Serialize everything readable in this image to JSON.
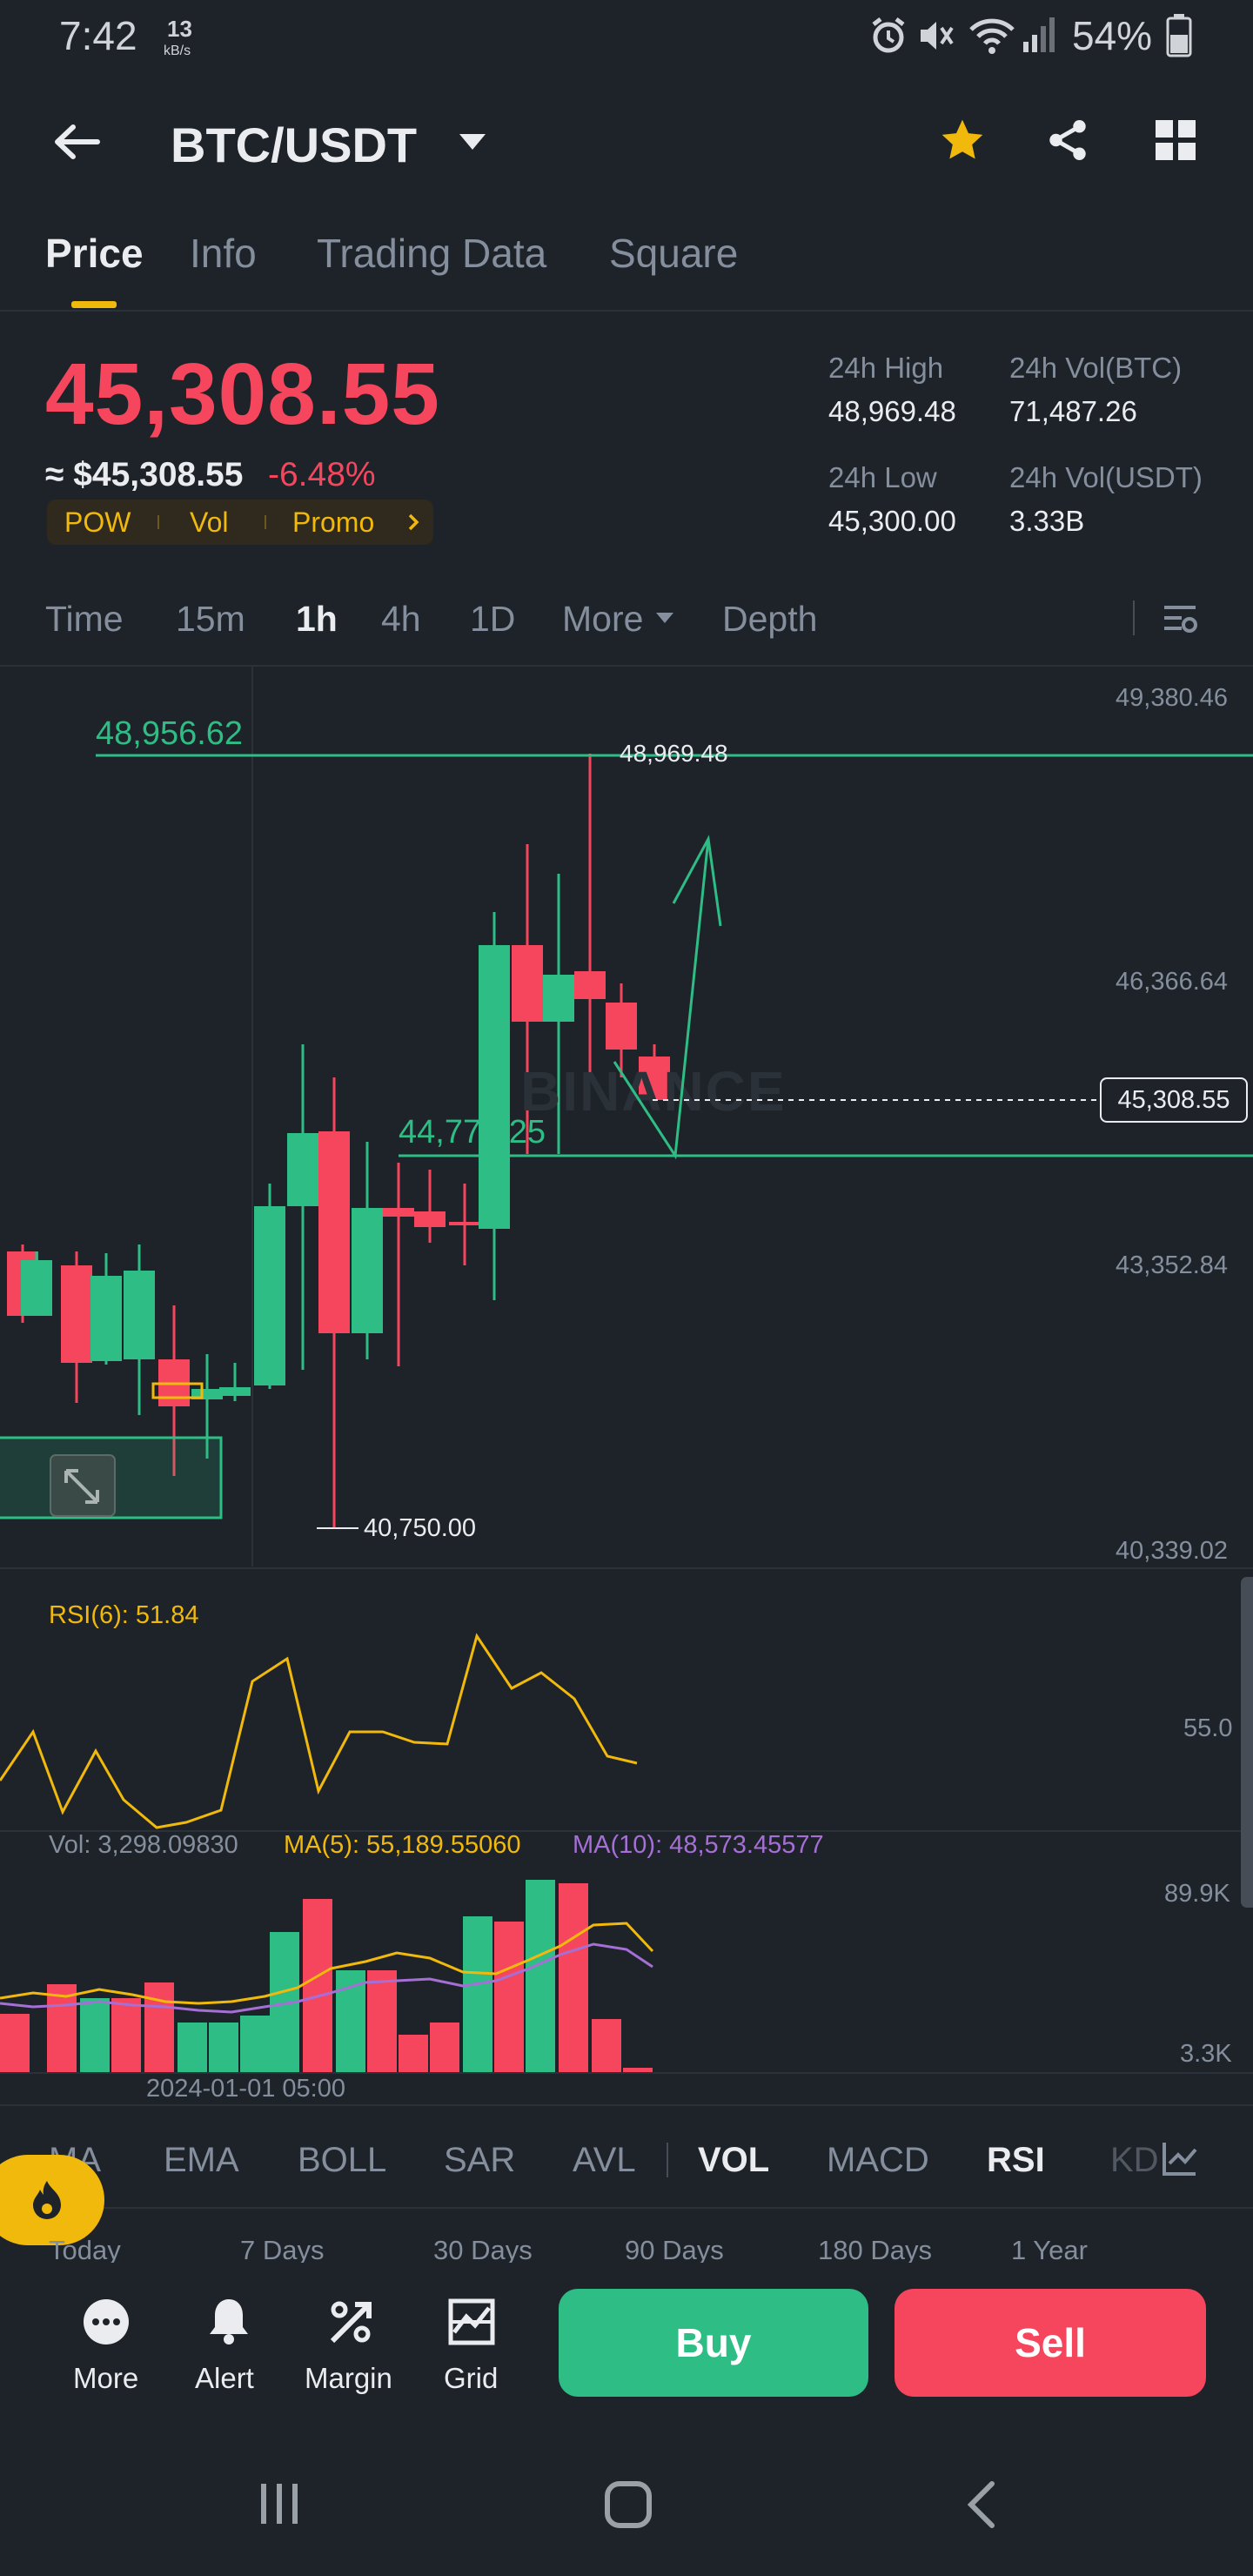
{
  "status_bar": {
    "time": "7:42",
    "net_speed": "13",
    "net_unit": "kB/s",
    "battery": "54%"
  },
  "header": {
    "pair": "BTC/USDT"
  },
  "tabs": [
    {
      "label": "Price",
      "active": true
    },
    {
      "label": "Info"
    },
    {
      "label": "Trading Data"
    },
    {
      "label": "Square"
    }
  ],
  "ticker": {
    "last_price": "45,308.55",
    "approx": "≈ $45,308.55",
    "change": "-6.48%",
    "badges": [
      "POW",
      "Vol",
      "Promo"
    ],
    "high_label": "24h High",
    "high": "48,969.48",
    "low_label": "24h Low",
    "low": "45,300.00",
    "vol_btc_label": "24h Vol(BTC)",
    "vol_btc": "71,487.26",
    "vol_usdt_label": "24h Vol(USDT)",
    "vol_usdt": "3.33B"
  },
  "timeframes": {
    "time": "Time",
    "m15": "15m",
    "h1": "1h",
    "h4": "4h",
    "d1": "1D",
    "more": "More",
    "depth": "Depth"
  },
  "chart": {
    "y_ticks": [
      "49,380.46",
      "46,366.64",
      "43,352.84",
      "40,339.02"
    ],
    "line_high": "48,956.62",
    "line_low": "44,778.25",
    "high_marker": "48,969.48",
    "low_marker": "40,750.00",
    "current_price": "45,308.55",
    "watermark": "BINANCE"
  },
  "rsi": {
    "label": "RSI(6): 51.84",
    "tick": "55.0"
  },
  "volume": {
    "vol_label": "Vol: 3,298.09830",
    "ma5_label": "MA(5): 55,189.55060",
    "ma10_label": "MA(10): 48,573.45577",
    "ticks": [
      "89.9K",
      "3.3K"
    ],
    "date": "2024-01-01 05:00"
  },
  "indicators": [
    "MA",
    "EMA",
    "BOLL",
    "SAR",
    "AVL",
    "VOL",
    "MACD",
    "RSI",
    "KD"
  ],
  "periods": [
    "Today",
    "7 Days",
    "30 Days",
    "90 Days",
    "180 Days",
    "1 Year"
  ],
  "bottom": {
    "more": "More",
    "alert": "Alert",
    "margin": "Margin",
    "grid": "Grid",
    "buy": "Buy",
    "sell": "Sell"
  },
  "colors": {
    "green": "#2ebd85",
    "red": "#f6465d",
    "yellow": "#f0b90b",
    "purple": "#a56fd6",
    "bg": "#1e2329"
  }
}
